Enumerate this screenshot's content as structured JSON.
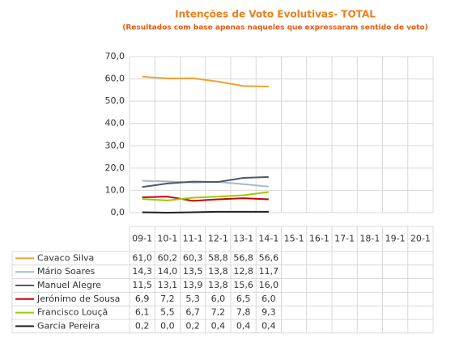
{
  "chart_data": {
    "type": "line",
    "title": "Intenções de Voto Evolutivas- TOTAL",
    "subtitle": "(Resultados com base apenas naqueles que expressaram sentido de voto)",
    "categories": [
      "09-1",
      "10-1",
      "11-1",
      "12-1",
      "13-1",
      "14-1",
      "15-1",
      "16-1",
      "17-1",
      "18-1",
      "19-1",
      "20-1"
    ],
    "ylim": [
      0,
      70
    ],
    "yticks": [
      {
        "value": 0,
        "label": "0,0"
      },
      {
        "value": 10,
        "label": "10,0"
      },
      {
        "value": 20,
        "label": "20,0"
      },
      {
        "value": 30,
        "label": "30,0"
      },
      {
        "value": 40,
        "label": "40,0"
      },
      {
        "value": 50,
        "label": "50,0"
      },
      {
        "value": 60,
        "label": "60,0"
      },
      {
        "value": 70,
        "label": "70,0"
      }
    ],
    "grid": true,
    "series": [
      {
        "name": "Cavaco Silva",
        "color": "#f0a030",
        "values": [
          61.0,
          60.2,
          60.3,
          58.8,
          56.8,
          56.6,
          null,
          null,
          null,
          null,
          null,
          null
        ],
        "value_labels": [
          "61,0",
          "60,2",
          "60,3",
          "58,8",
          "56,8",
          "56,6",
          null,
          null,
          null,
          null,
          null,
          null
        ]
      },
      {
        "name": "Mário Soares",
        "color": "#a8b8cc",
        "values": [
          14.3,
          14.0,
          13.5,
          13.8,
          12.8,
          11.7,
          null,
          null,
          null,
          null,
          null,
          null
        ],
        "value_labels": [
          "14,3",
          "14,0",
          "13,5",
          "13,8",
          "12,8",
          "11,7",
          null,
          null,
          null,
          null,
          null,
          null
        ]
      },
      {
        "name": "Manuel Alegre",
        "color": "#4a5a6a",
        "values": [
          11.5,
          13.1,
          13.9,
          13.8,
          15.6,
          16.0,
          null,
          null,
          null,
          null,
          null,
          null
        ],
        "value_labels": [
          "11,5",
          "13,1",
          "13,9",
          "13,8",
          "15,6",
          "16,0",
          null,
          null,
          null,
          null,
          null,
          null
        ]
      },
      {
        "name": "Jerónimo de Sousa",
        "color": "#cc0000",
        "values": [
          6.9,
          7.2,
          5.3,
          6.0,
          6.5,
          6.0,
          null,
          null,
          null,
          null,
          null,
          null
        ],
        "value_labels": [
          "6,9",
          "7,2",
          "5,3",
          "6,0",
          "6,5",
          "6,0",
          null,
          null,
          null,
          null,
          null,
          null
        ]
      },
      {
        "name": "Francisco Louçã",
        "color": "#99cc00",
        "values": [
          6.1,
          5.5,
          6.7,
          7.2,
          7.8,
          9.3,
          null,
          null,
          null,
          null,
          null,
          null
        ],
        "value_labels": [
          "6,1",
          "5,5",
          "6,7",
          "7,2",
          "7,8",
          "9,3",
          null,
          null,
          null,
          null,
          null,
          null
        ]
      },
      {
        "name": "Garcia Pereira",
        "color": "#222222",
        "values": [
          0.2,
          0.0,
          0.2,
          0.4,
          0.4,
          0.4,
          null,
          null,
          null,
          null,
          null,
          null
        ],
        "value_labels": [
          "0,2",
          "0,0",
          "0,2",
          "0,4",
          "0,4",
          "0,4",
          null,
          null,
          null,
          null,
          null,
          null
        ]
      }
    ]
  }
}
